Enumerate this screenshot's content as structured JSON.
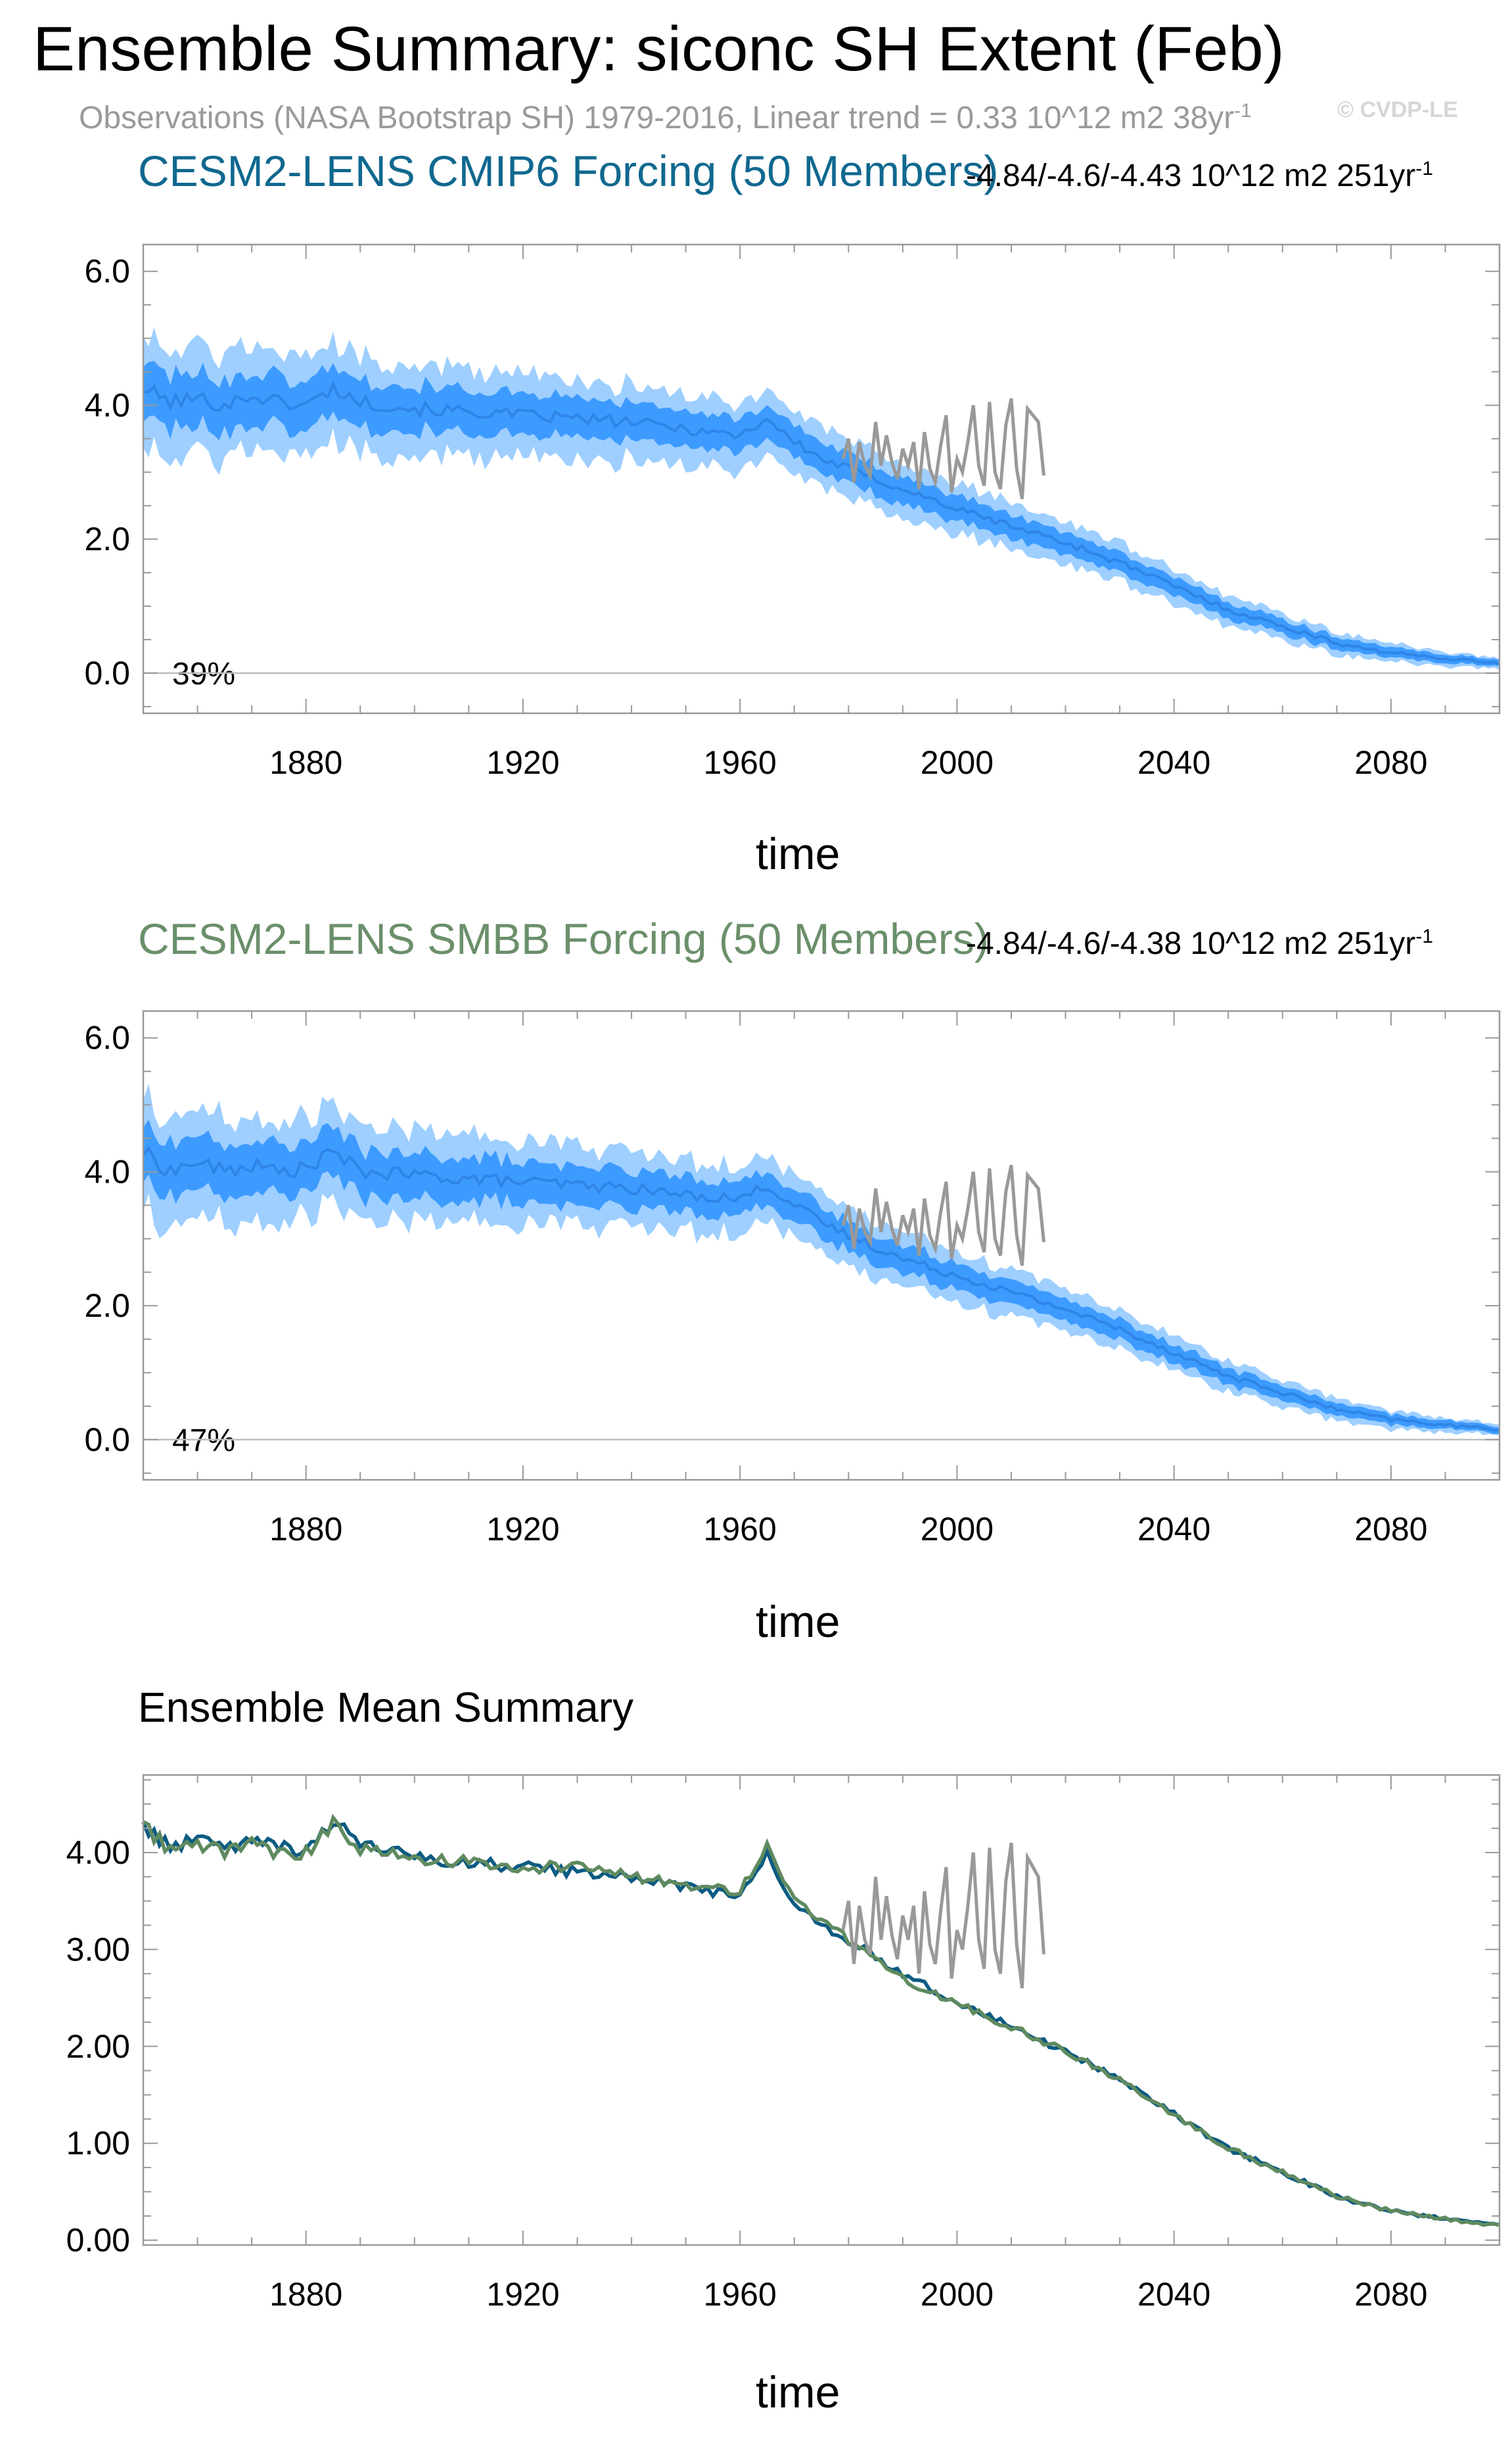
{
  "figure": {
    "title": "Ensemble Summary: siconc SH Extent (Feb)",
    "subtitle": "Observations (NASA Bootstrap SH) 1979-2016, Linear trend = 0.33 10^12 m2 38yr",
    "subtitle_sup": "-1",
    "watermark": "© CVDP-LE"
  },
  "colors": {
    "outer_band": "#9ecfff",
    "inner_band": "#3d9bff",
    "mean_line": "#2f85e6",
    "obs": "#999999",
    "cmip6": "#0b5b82",
    "smbb": "#5f8a5f",
    "frame": "#999999",
    "gridline": "#bdbdbd"
  },
  "panels": [
    {
      "title": "CESM2-LENS CMIP6 Forcing (50 Members)",
      "title_color": "#10688f",
      "stat": "-4.84/-4.6/-4.43 10^12 m2 251yr",
      "stat_sup": "-1",
      "pct": "39%",
      "xlabel": "time"
    },
    {
      "title": "CESM2-LENS SMBB Forcing (50 Members)",
      "title_color": "#6b8f6b",
      "stat": "-4.84/-4.6/-4.38 10^12 m2 251yr",
      "stat_sup": "-1",
      "pct": "47%",
      "xlabel": "time"
    },
    {
      "title": "Ensemble Mean Summary",
      "title_color": "#000000",
      "xlabel": "time"
    }
  ],
  "chart_data": [
    {
      "type": "area",
      "title": "CESM2-LENS CMIP6 Forcing (50 Members)",
      "xlabel": "time",
      "ylabel": "",
      "xlim": [
        1850,
        2100
      ],
      "ylim": [
        -0.6,
        6.4
      ],
      "xticks": [
        1880,
        1920,
        1960,
        2000,
        2040,
        2080
      ],
      "yticks": [
        0.0,
        2.0,
        4.0,
        6.0
      ],
      "ytick_labels": [
        "0.0",
        "2.0",
        "4.0",
        "6.0"
      ],
      "mean_anchors": {
        "x": [
          1850,
          1855,
          1860,
          1865,
          1870,
          1875,
          1880,
          1885,
          1890,
          1900,
          1910,
          1920,
          1930,
          1940,
          1950,
          1960,
          1965,
          1970,
          1975,
          1980,
          1990,
          2000,
          2010,
          2020,
          2030,
          2040,
          2050,
          2060,
          2070,
          2080,
          2090,
          2100
        ],
        "y": [
          4.25,
          4.05,
          4.1,
          4.0,
          4.15,
          4.05,
          4.0,
          4.25,
          4.05,
          3.95,
          3.9,
          3.85,
          3.8,
          3.75,
          3.65,
          3.55,
          3.8,
          3.45,
          3.2,
          3.05,
          2.75,
          2.45,
          2.2,
          1.95,
          1.65,
          1.3,
          0.95,
          0.7,
          0.45,
          0.3,
          0.22,
          0.15
        ]
      },
      "inner_band_halfwidth": [
        0.42,
        0.05
      ],
      "outer_band_halfwidth": [
        0.85,
        0.08
      ],
      "observations": {
        "x": [
          1979,
          1980,
          1981,
          1982,
          1983,
          1984,
          1985,
          1986,
          1987,
          1988,
          1989,
          1990,
          1991,
          1992,
          1993,
          1994,
          1995,
          1996,
          1997,
          1998,
          1999,
          2000,
          2001,
          2002,
          2003,
          2004,
          2005,
          2006,
          2007,
          2008,
          2009,
          2010,
          2011,
          2012,
          2013,
          2014,
          2015,
          2016
        ],
        "y": [
          3.2,
          3.5,
          2.85,
          3.45,
          3.1,
          2.95,
          3.75,
          3.1,
          3.55,
          3.15,
          2.9,
          3.35,
          3.1,
          3.45,
          2.75,
          3.6,
          3.05,
          2.85,
          3.4,
          3.85,
          2.7,
          3.2,
          3.0,
          3.45,
          4.0,
          3.1,
          2.8,
          4.05,
          3.0,
          2.75,
          3.7,
          4.1,
          3.05,
          2.6,
          3.95,
          3.85,
          3.75,
          2.95
        ]
      }
    },
    {
      "type": "area",
      "title": "CESM2-LENS SMBB Forcing (50 Members)",
      "xlabel": "time",
      "ylabel": "",
      "xlim": [
        1850,
        2100
      ],
      "ylim": [
        -0.6,
        6.4
      ],
      "xticks": [
        1880,
        1920,
        1960,
        2000,
        2040,
        2080
      ],
      "yticks": [
        0.0,
        2.0,
        4.0,
        6.0
      ],
      "ytick_labels": [
        "0.0",
        "2.0",
        "4.0",
        "6.0"
      ],
      "mean_anchors": {
        "x": [
          1850,
          1855,
          1860,
          1865,
          1870,
          1875,
          1880,
          1885,
          1890,
          1900,
          1910,
          1920,
          1930,
          1940,
          1950,
          1960,
          1965,
          1970,
          1975,
          1980,
          1990,
          2000,
          2010,
          2020,
          2030,
          2040,
          2050,
          2060,
          2070,
          2080,
          2090,
          2100
        ],
        "y": [
          4.3,
          4.0,
          4.15,
          4.0,
          4.1,
          4.0,
          4.05,
          4.3,
          4.0,
          3.95,
          3.9,
          3.85,
          3.8,
          3.75,
          3.65,
          3.6,
          3.8,
          3.5,
          3.25,
          3.05,
          2.7,
          2.45,
          2.2,
          1.95,
          1.65,
          1.3,
          0.95,
          0.7,
          0.45,
          0.3,
          0.22,
          0.15
        ]
      },
      "inner_band_halfwidth": [
        0.42,
        0.05
      ],
      "outer_band_halfwidth": [
        0.85,
        0.08
      ],
      "observations": {
        "x": [
          1979,
          1980,
          1981,
          1982,
          1983,
          1984,
          1985,
          1986,
          1987,
          1988,
          1989,
          1990,
          1991,
          1992,
          1993,
          1994,
          1995,
          1996,
          1997,
          1998,
          1999,
          2000,
          2001,
          2002,
          2003,
          2004,
          2005,
          2006,
          2007,
          2008,
          2009,
          2010,
          2011,
          2012,
          2013,
          2014,
          2015,
          2016
        ],
        "y": [
          3.2,
          3.5,
          2.85,
          3.45,
          3.1,
          2.95,
          3.75,
          3.1,
          3.55,
          3.15,
          2.9,
          3.35,
          3.1,
          3.45,
          2.75,
          3.6,
          3.05,
          2.85,
          3.4,
          3.85,
          2.7,
          3.2,
          3.0,
          3.45,
          4.0,
          3.1,
          2.8,
          4.05,
          3.0,
          2.75,
          3.7,
          4.1,
          3.05,
          2.6,
          3.95,
          3.85,
          3.75,
          2.95
        ]
      }
    },
    {
      "type": "line",
      "title": "Ensemble Mean Summary",
      "xlabel": "time",
      "ylabel": "",
      "xlim": [
        1850,
        2100
      ],
      "ylim": [
        -0.05,
        4.8
      ],
      "xticks": [
        1880,
        1920,
        1960,
        2000,
        2040,
        2080
      ],
      "yticks": [
        0,
        1,
        2,
        3,
        4
      ],
      "ytick_labels": [
        "0.00",
        "1.00",
        "2.00",
        "3.00",
        "4.00"
      ],
      "series": [
        {
          "name": "CESM2-LENS CMIP6 Forcing",
          "color": "#0b5b82",
          "anchors_x": [
            1850,
            1855,
            1860,
            1865,
            1870,
            1875,
            1880,
            1885,
            1890,
            1900,
            1910,
            1920,
            1930,
            1940,
            1950,
            1960,
            1965,
            1970,
            1975,
            1980,
            1990,
            2000,
            2010,
            2020,
            2030,
            2040,
            2050,
            2060,
            2070,
            2080,
            2090,
            2100
          ],
          "anchors_y": [
            4.3,
            4.05,
            4.15,
            4.05,
            4.15,
            4.05,
            4.0,
            4.35,
            4.1,
            3.95,
            3.9,
            3.85,
            3.8,
            3.75,
            3.65,
            3.55,
            4.0,
            3.45,
            3.25,
            3.1,
            2.75,
            2.45,
            2.2,
            1.95,
            1.65,
            1.3,
            0.95,
            0.7,
            0.45,
            0.3,
            0.22,
            0.15
          ]
        },
        {
          "name": "CESM2-LENS SMBB Forcing",
          "color": "#5f8a5f",
          "anchors_x": [
            1850,
            1855,
            1860,
            1865,
            1870,
            1875,
            1880,
            1885,
            1890,
            1900,
            1910,
            1920,
            1930,
            1940,
            1950,
            1960,
            1965,
            1970,
            1975,
            1980,
            1990,
            2000,
            2010,
            2020,
            2030,
            2040,
            2050,
            2060,
            2070,
            2080,
            2090,
            2100
          ],
          "anchors_y": [
            4.3,
            4.0,
            4.1,
            4.0,
            4.1,
            4.0,
            4.0,
            4.3,
            4.05,
            3.95,
            3.9,
            3.85,
            3.85,
            3.75,
            3.65,
            3.6,
            4.05,
            3.5,
            3.3,
            3.1,
            2.7,
            2.45,
            2.2,
            1.95,
            1.65,
            1.3,
            0.95,
            0.7,
            0.45,
            0.3,
            0.22,
            0.15
          ]
        },
        {
          "name": "Observations",
          "color": "#999999",
          "anchors_x": [
            1979,
            1980,
            1981,
            1982,
            1983,
            1984,
            1985,
            1986,
            1987,
            1988,
            1989,
            1990,
            1991,
            1992,
            1993,
            1994,
            1995,
            1996,
            1997,
            1998,
            1999,
            2000,
            2001,
            2002,
            2003,
            2004,
            2005,
            2006,
            2007,
            2008,
            2009,
            2010,
            2011,
            2012,
            2013,
            2014,
            2015,
            2016
          ],
          "anchors_y": [
            3.2,
            3.5,
            2.85,
            3.45,
            3.1,
            2.95,
            3.75,
            3.1,
            3.55,
            3.15,
            2.9,
            3.35,
            3.1,
            3.45,
            2.75,
            3.6,
            3.05,
            2.85,
            3.4,
            3.85,
            2.7,
            3.2,
            3.0,
            3.45,
            4.0,
            3.1,
            2.8,
            4.05,
            3.0,
            2.75,
            3.7,
            4.1,
            3.05,
            2.6,
            3.95,
            3.85,
            3.75,
            2.95
          ]
        }
      ]
    }
  ]
}
